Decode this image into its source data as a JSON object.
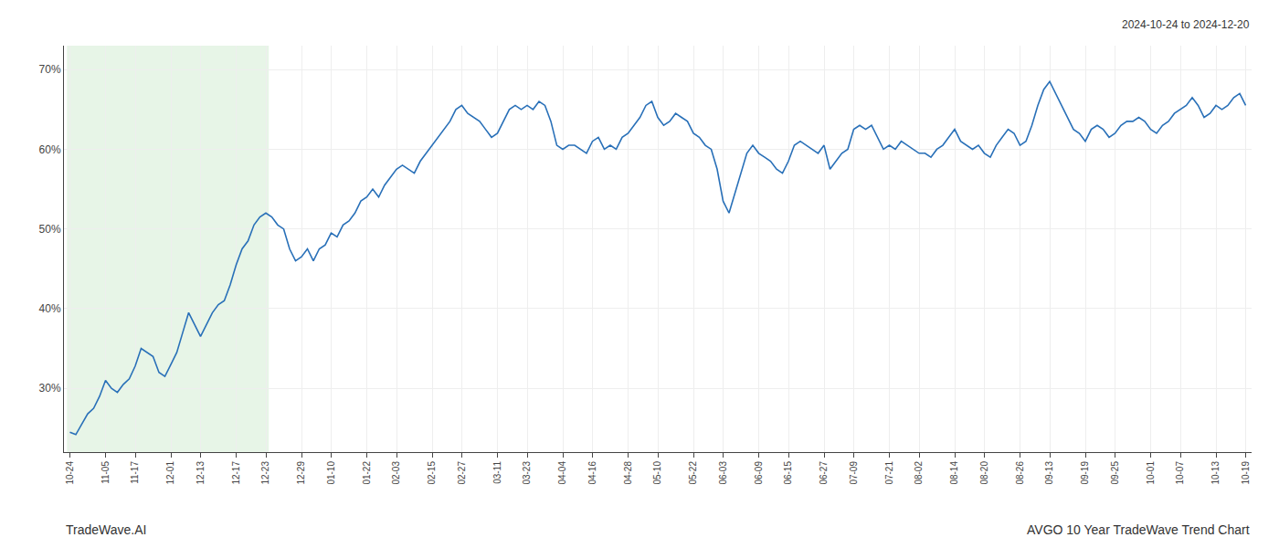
{
  "chart_data": {
    "type": "line",
    "title": "AVGO 10 Year TradeWave Trend Chart",
    "subtitle": "2024-10-24 to 2024-12-20",
    "annotations": [
      "TradeWave.AI"
    ],
    "color": "#2970b8",
    "grid": true,
    "ylim": [
      22,
      73
    ],
    "yticks": [
      {
        "value": 30,
        "label": "30%"
      },
      {
        "value": 40,
        "label": "40%"
      },
      {
        "value": 50,
        "label": "50%"
      },
      {
        "value": 60,
        "label": "60%"
      },
      {
        "value": 70,
        "label": "70%"
      }
    ],
    "shade": {
      "from": "10-24",
      "to": "12-23",
      "color": "#d4ecd4"
    },
    "categories": [
      "10-24",
      null,
      null,
      null,
      null,
      null,
      "11-05",
      null,
      null,
      null,
      null,
      "11-17",
      null,
      null,
      null,
      null,
      null,
      "12-01",
      null,
      null,
      null,
      null,
      "12-13",
      null,
      null,
      null,
      null,
      null,
      "12-17",
      null,
      null,
      null,
      null,
      "12-23",
      null,
      null,
      null,
      null,
      null,
      "12-29",
      null,
      null,
      null,
      null,
      "01-10",
      null,
      null,
      null,
      null,
      null,
      "01-22",
      null,
      null,
      null,
      null,
      "02-03",
      null,
      null,
      null,
      null,
      null,
      "02-15",
      null,
      null,
      null,
      null,
      "02-27",
      null,
      null,
      null,
      null,
      null,
      "03-11",
      null,
      null,
      null,
      null,
      "03-23",
      null,
      null,
      null,
      null,
      null,
      "04-04",
      null,
      null,
      null,
      null,
      "04-16",
      null,
      null,
      null,
      null,
      null,
      "04-28",
      null,
      null,
      null,
      null,
      "05-10",
      null,
      null,
      null,
      null,
      null,
      "05-22",
      null,
      null,
      null,
      null,
      "06-03",
      null,
      null,
      null,
      null,
      null,
      "06-09",
      null,
      null,
      null,
      null,
      "06-15",
      null,
      null,
      null,
      null,
      null,
      "06-27",
      null,
      null,
      null,
      null,
      "07-09",
      null,
      null,
      null,
      null,
      null,
      "07-21",
      null,
      null,
      null,
      null,
      "08-02",
      null,
      null,
      null,
      null,
      null,
      "08-14",
      null,
      null,
      null,
      null,
      "08-20",
      null,
      null,
      null,
      null,
      null,
      "08-26",
      null,
      null,
      null,
      null,
      "09-13",
      null,
      null,
      null,
      null,
      null,
      "09-19",
      null,
      null,
      null,
      null,
      "09-25",
      null,
      null,
      null,
      null,
      null,
      "10-01",
      null,
      null,
      null,
      null,
      "10-07",
      null,
      null,
      null,
      null,
      null,
      "10-13",
      null,
      null,
      null,
      null,
      "10-19"
    ],
    "values": [
      24.5,
      24.2,
      25.5,
      26.8,
      27.5,
      29.0,
      31.0,
      30.0,
      29.5,
      30.5,
      31.2,
      32.8,
      35.0,
      34.5,
      34.0,
      32.0,
      31.5,
      33.0,
      34.5,
      37.0,
      39.5,
      38.0,
      36.5,
      38.0,
      39.5,
      40.5,
      41.0,
      43.0,
      45.5,
      47.5,
      48.5,
      50.5,
      51.5,
      52.0,
      51.5,
      50.5,
      50.0,
      47.5,
      46.0,
      46.5,
      47.5,
      46.0,
      47.5,
      48.0,
      49.5,
      49.0,
      50.5,
      51.0,
      52.0,
      53.5,
      54.0,
      55.0,
      54.0,
      55.5,
      56.5,
      57.5,
      58.0,
      57.5,
      57.0,
      58.5,
      59.5,
      60.5,
      61.5,
      62.5,
      63.5,
      65.0,
      65.5,
      64.5,
      64.0,
      63.5,
      62.5,
      61.5,
      62.0,
      63.5,
      65.0,
      65.5,
      65.0,
      65.5,
      65.0,
      66.0,
      65.5,
      63.5,
      60.5,
      60.0,
      60.5,
      60.5,
      60.0,
      59.5,
      61.0,
      61.5,
      60.0,
      60.5,
      60.0,
      61.5,
      62.0,
      63.0,
      64.0,
      65.5,
      66.0,
      64.0,
      63.0,
      63.5,
      64.5,
      64.0,
      63.5,
      62.0,
      61.5,
      60.5,
      60.0,
      57.5,
      53.5,
      52.0,
      54.5,
      57.0,
      59.5,
      60.5,
      59.5,
      59.0,
      58.5,
      57.5,
      57.0,
      58.5,
      60.5,
      61.0,
      60.5,
      60.0,
      59.5,
      60.5,
      57.5,
      58.5,
      59.5,
      60.0,
      62.5,
      63.0,
      62.5,
      63.0,
      61.5,
      60.0,
      60.5,
      60.0,
      61.0,
      60.5,
      60.0,
      59.5,
      59.5,
      59.0,
      60.0,
      60.5,
      61.5,
      62.5,
      61.0,
      60.5,
      60.0,
      60.5,
      59.5,
      59.0,
      60.5,
      61.5,
      62.5,
      62.0,
      60.5,
      61.0,
      63.0,
      65.5,
      67.5,
      68.5,
      67.0,
      65.5,
      64.0,
      62.5,
      62.0,
      61.0,
      62.5,
      63.0,
      62.5,
      61.5,
      62.0,
      63.0,
      63.5,
      63.5,
      64.0,
      63.5,
      62.5,
      62.0,
      63.0,
      63.5,
      64.5,
      65.0,
      65.5,
      66.5,
      65.5,
      64.0,
      64.5,
      65.5,
      65.0,
      65.5,
      66.5,
      67.0,
      65.5
    ]
  }
}
